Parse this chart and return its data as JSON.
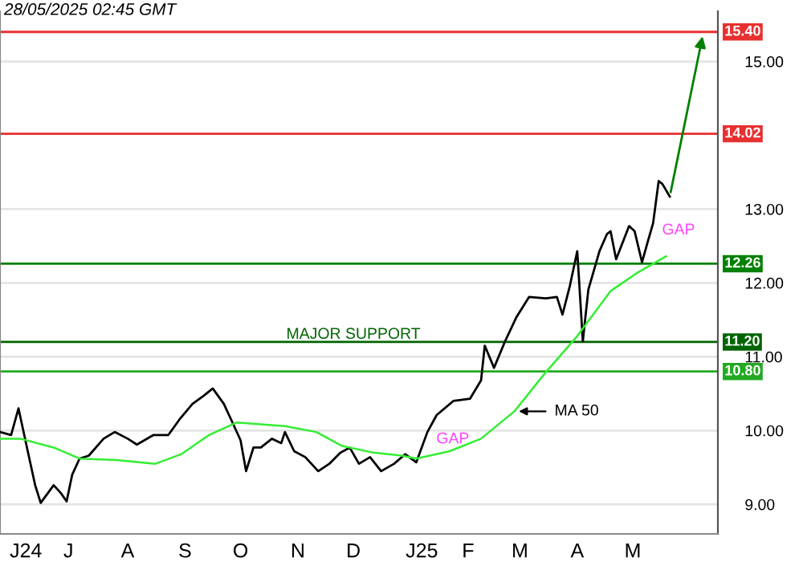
{
  "chart_data": {
    "type": "line",
    "x": [
      "2024-05-29",
      "2024-06-04",
      "2024-06-08",
      "2024-06-13",
      "2024-06-17",
      "2024-06-20",
      "2024-06-27",
      "2024-07-01",
      "2024-07-04",
      "2024-07-07",
      "2024-07-11",
      "2024-07-16",
      "2024-07-24",
      "2024-07-30",
      "2024-08-06",
      "2024-08-11",
      "2024-08-20",
      "2024-08-28",
      "2024-09-03",
      "2024-09-10",
      "2024-09-16",
      "2024-09-21",
      "2024-09-27",
      "2024-10-02",
      "2024-10-06",
      "2024-10-09",
      "2024-10-13",
      "2024-10-17",
      "2024-10-23",
      "2024-10-28",
      "2024-10-30",
      "2024-11-04",
      "2024-11-10",
      "2024-11-17",
      "2024-11-23",
      "2024-11-29",
      "2024-12-04",
      "2024-12-09",
      "2024-12-15",
      "2024-12-21",
      "2024-12-28",
      "2025-01-03",
      "2025-01-09",
      "2025-01-15",
      "2025-01-20",
      "2025-01-29",
      "2025-02-07",
      "2025-02-13",
      "2025-02-15",
      "2025-02-20",
      "2025-02-26",
      "2025-03-04",
      "2025-03-11",
      "2025-03-20",
      "2025-03-26",
      "2025-03-29",
      "2025-04-02",
      "2025-04-06",
      "2025-04-09",
      "2025-04-12",
      "2025-04-18",
      "2025-04-22",
      "2025-04-24",
      "2025-04-27",
      "2025-05-04",
      "2025-05-07",
      "2025-05-11",
      "2025-05-14",
      "2025-05-17",
      "2025-05-20",
      "2025-05-22",
      "2025-05-26"
    ],
    "series": [
      {
        "color": "#000000",
        "values": [
          9.98,
          9.94,
          10.3,
          9.72,
          9.26,
          9.02,
          9.26,
          9.15,
          9.04,
          9.4,
          9.62,
          9.66,
          9.89,
          9.98,
          9.89,
          9.81,
          9.94,
          9.94,
          10.15,
          10.36,
          10.47,
          10.57,
          10.36,
          10.09,
          9.87,
          9.45,
          9.77,
          9.77,
          9.89,
          9.83,
          9.98,
          9.72,
          9.64,
          9.45,
          9.55,
          9.7,
          9.77,
          9.55,
          9.64,
          9.45,
          9.55,
          9.68,
          9.57,
          9.98,
          10.21,
          10.4,
          10.43,
          10.68,
          11.15,
          10.85,
          11.21,
          11.53,
          11.81,
          11.79,
          11.81,
          11.57,
          11.96,
          12.43,
          11.21,
          11.91,
          12.43,
          12.66,
          12.7,
          12.32,
          12.77,
          12.7,
          12.28,
          12.55,
          12.81,
          13.38,
          13.34,
          13.17
        ]
      },
      {
        "color": "#33ee33",
        "x": [
          "2024-05-29",
          "2024-06-09",
          "2024-06-27",
          "2024-07-11",
          "2024-07-31",
          "2024-08-21",
          "2024-09-04",
          "2024-09-19",
          "2024-10-04",
          "2024-10-30",
          "2024-11-16",
          "2024-11-30",
          "2024-12-17",
          "2025-01-01",
          "2025-01-09",
          "2025-01-27",
          "2025-02-13",
          "2025-03-03",
          "2025-03-20",
          "2025-04-06",
          "2025-04-24",
          "2025-05-08",
          "2025-05-24"
        ],
        "values": [
          9.89,
          9.89,
          9.77,
          9.62,
          9.6,
          9.55,
          9.68,
          9.94,
          10.11,
          10.06,
          9.98,
          9.79,
          9.7,
          9.66,
          9.62,
          9.72,
          9.89,
          10.26,
          10.79,
          11.28,
          11.89,
          12.13,
          12.36
        ]
      }
    ],
    "xlim": [
      "2024-05-29",
      "2025-06-21"
    ],
    "xticks": [
      {
        "value": "2024-06-12",
        "label": "J24"
      },
      {
        "value": "2024-07-05",
        "label": "J"
      },
      {
        "value": "2024-08-06",
        "label": "A"
      },
      {
        "value": "2024-09-06",
        "label": "S"
      },
      {
        "value": "2024-10-06",
        "label": "O"
      },
      {
        "value": "2024-11-06",
        "label": "N"
      },
      {
        "value": "2024-12-06",
        "label": "D"
      },
      {
        "value": "2025-01-12",
        "label": "J25"
      },
      {
        "value": "2025-02-06",
        "label": "F"
      },
      {
        "value": "2025-03-06",
        "label": "M"
      },
      {
        "value": "2025-04-06",
        "label": "A"
      },
      {
        "value": "2025-05-06",
        "label": "M"
      }
    ],
    "ylim": [
      8.6,
      15.68
    ],
    "yticks": [
      {
        "value": 9,
        "label": "9.00"
      },
      {
        "value": 10,
        "label": "10.00"
      },
      {
        "value": 11,
        "label": "11.00"
      },
      {
        "value": 12,
        "label": "12.00"
      },
      {
        "value": 13,
        "label": "13.00"
      },
      {
        "value": 15,
        "label": "15.00"
      }
    ],
    "grid": "y",
    "ref_lines": [
      {
        "axis": "y",
        "value": 15.4,
        "label": "15.40",
        "color": "#e83030"
      },
      {
        "axis": "y",
        "value": 14.02,
        "label": "14.02",
        "color": "#e83030"
      },
      {
        "axis": "y",
        "value": 12.26,
        "label": "12.26",
        "color": "#008000"
      },
      {
        "axis": "y",
        "value": 11.2,
        "label": "11.20",
        "color": "#006400"
      },
      {
        "axis": "y",
        "value": 10.8,
        "label": "10.80",
        "color": "#22aa22"
      }
    ],
    "annotations": [
      "28/05/2025 02:45 GMT",
      {
        "text": "MAJOR SUPPORT",
        "x": "2024-12-06",
        "y": 11.2
      },
      {
        "text": "GAP",
        "x": "2025-01-15",
        "y": 9.98
      },
      {
        "text": "GAP",
        "x": "2025-05-17",
        "y": 12.81
      },
      {
        "text": "MA 50",
        "x": "2025-03-03",
        "y": 10.26
      }
    ]
  }
}
